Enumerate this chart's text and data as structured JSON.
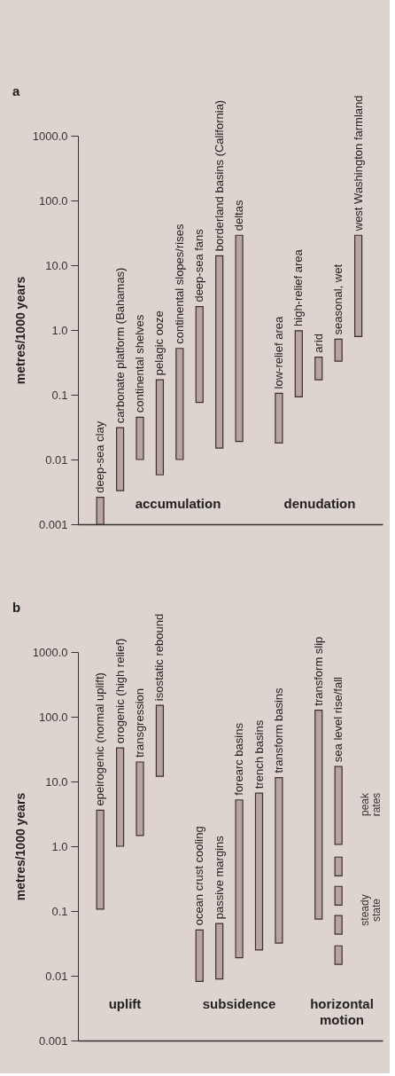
{
  "chart_data": [
    {
      "type": "bar",
      "title": "a",
      "ylabel": "metres/1000 years",
      "categories": [
        "deep-sea clay",
        "carbonate platform (Bahamas)",
        "continental shelves",
        "pelagic ooze",
        "continental slopes/rises",
        "deep-sea fans",
        "borderland basins (California)",
        "deltas",
        null,
        "low-relief area",
        "high-relief area",
        "arid",
        "seasonal, wet",
        "west Washington farmland"
      ],
      "series": [
        {
          "color": "#b9a59d",
          "base": [
            0.001,
            0.0033,
            0.01,
            0.0058,
            0.01,
            0.076,
            0.015,
            0.019,
            null,
            0.018,
            0.093,
            0.17,
            0.33,
            0.79
          ],
          "values": [
            0.0016,
            0.0277,
            0.035,
            0.1642,
            0.51,
            2.224,
            13.985,
            28.981,
            null,
            0.087,
            0.877,
            0.21,
            0.39,
            28.21
          ]
        }
      ],
      "ylim": [
        0.001,
        1000
      ],
      "yticks": [
        {
          "value": 1000,
          "label": "1000.0"
        },
        {
          "value": 100,
          "label": "100.0"
        },
        {
          "value": 10,
          "label": "10.0"
        },
        {
          "value": 1,
          "label": "1.0"
        },
        0.1,
        0.01,
        0.001
      ],
      "log": true,
      "grid": false,
      "tick_labels": "y",
      "annotations": [
        "accumulation",
        "denudation"
      ]
    },
    {
      "type": "bar",
      "title": "b",
      "ylabel": "metres/1000 years",
      "categories": [
        "epeirogenic (normal uplift)",
        "orogenic (high relief)",
        "transgression",
        "isostatic rebound",
        null,
        "ocean crust cooling",
        "passive margins",
        "forearc basins",
        "trench basins",
        "transform basins",
        null,
        "transform slip",
        "sea level rise/fall"
      ],
      "series": [
        {
          "color": "#b9a59d",
          "base": [
            0.107,
            1.0,
            1.47,
            12,
            null,
            0.0082,
            0.0089,
            0.019,
            0.025,
            0.032,
            null,
            0.075,
            1.07
          ],
          "values": [
            3.493,
            32,
            18.53,
            138,
            null,
            0.0428,
            0.0551,
            5.181,
            6.575,
            11.468,
            null,
            125.925,
            15.93
          ]
        },
        {
          "color": "#b9a59d",
          "base": [
            null,
            null,
            null,
            null,
            null,
            null,
            null,
            null,
            null,
            null,
            null,
            null,
            0.35
          ],
          "values": [
            null,
            null,
            null,
            null,
            null,
            null,
            null,
            null,
            null,
            null,
            null,
            null,
            0.33
          ]
        },
        {
          "color": "#b9a59d",
          "base": [
            null,
            null,
            null,
            null,
            null,
            null,
            null,
            null,
            null,
            null,
            null,
            null,
            0.123
          ],
          "values": [
            null,
            null,
            null,
            null,
            null,
            null,
            null,
            null,
            null,
            null,
            null,
            null,
            0.117
          ]
        },
        {
          "color": "#b9a59d",
          "base": [
            null,
            null,
            null,
            null,
            null,
            null,
            null,
            null,
            null,
            null,
            null,
            null,
            0.044
          ],
          "values": [
            null,
            null,
            null,
            null,
            null,
            null,
            null,
            null,
            null,
            null,
            null,
            null,
            0.041
          ]
        },
        {
          "color": "#b9a59d",
          "base": [
            null,
            null,
            null,
            null,
            null,
            null,
            null,
            null,
            null,
            null,
            null,
            null,
            0.015
          ],
          "values": [
            null,
            null,
            null,
            null,
            null,
            null,
            null,
            null,
            null,
            null,
            null,
            null,
            0.014
          ]
        }
      ],
      "ylim": [
        0.001,
        1000
      ],
      "yticks": [
        {
          "value": 1000,
          "label": "1000.0"
        },
        {
          "value": 100,
          "label": "100.0"
        },
        {
          "value": 10,
          "label": "10.0"
        },
        {
          "value": 1,
          "label": "1.0"
        },
        0.1,
        0.01,
        0.001
      ],
      "log": true,
      "grid": false,
      "tick_labels": "y",
      "annotations": [
        "uplift",
        "subsidence",
        "horizontal motion",
        "peak rates",
        "steady state"
      ]
    }
  ]
}
